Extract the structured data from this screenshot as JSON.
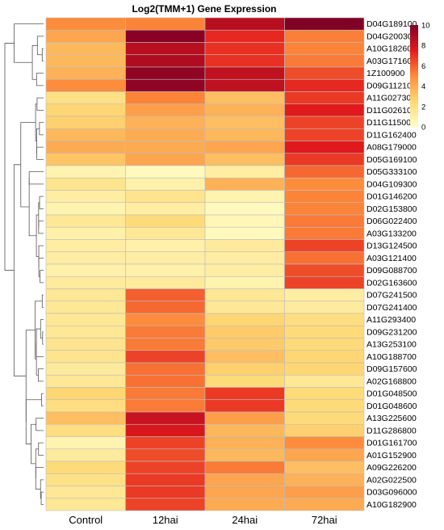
{
  "chart_data": {
    "type": "heatmap",
    "title": "Log2(TMM+1) Gene Expression",
    "columns": [
      "Control",
      "12hai",
      "24hai",
      "72hai"
    ],
    "rows": [
      {
        "gene": "D04G189100",
        "values": [
          5.0,
          5.2,
          8.6,
          10.0
        ]
      },
      {
        "gene": "D04G200300",
        "values": [
          4.2,
          9.8,
          7.2,
          5.3
        ]
      },
      {
        "gene": "A10G182600",
        "values": [
          3.6,
          8.6,
          7.0,
          5.2
        ]
      },
      {
        "gene": "A03G171600",
        "values": [
          3.6,
          8.8,
          7.0,
          5.4
        ]
      },
      {
        "gene": "1Z100900",
        "values": [
          3.8,
          9.6,
          8.4,
          6.4
        ]
      },
      {
        "gene": "D09G112100",
        "values": [
          5.0,
          9.6,
          8.4,
          7.2
        ]
      },
      {
        "gene": "A11G027300",
        "values": [
          2.0,
          5.2,
          3.4,
          6.8
        ]
      },
      {
        "gene": "D11G026100",
        "values": [
          2.6,
          4.4,
          3.8,
          7.6
        ]
      },
      {
        "gene": "D11G115000",
        "values": [
          2.8,
          3.8,
          3.4,
          6.6
        ]
      },
      {
        "gene": "D11G162400",
        "values": [
          3.6,
          4.0,
          3.6,
          6.6
        ]
      },
      {
        "gene": "A08G179000",
        "values": [
          4.0,
          4.0,
          4.2,
          7.6
        ]
      },
      {
        "gene": "D05G169100",
        "values": [
          3.2,
          4.2,
          3.4,
          6.8
        ]
      },
      {
        "gene": "D05G333100",
        "values": [
          0.8,
          0.4,
          1.2,
          5.8
        ]
      },
      {
        "gene": "D04G109300",
        "values": [
          1.8,
          1.0,
          3.8,
          5.0
        ]
      },
      {
        "gene": "D01G146200",
        "values": [
          1.2,
          1.8,
          0.8,
          5.2
        ]
      },
      {
        "gene": "D02G153800",
        "values": [
          0.8,
          1.2,
          0.4,
          5.2
        ]
      },
      {
        "gene": "D06G022400",
        "values": [
          1.6,
          2.4,
          0.6,
          5.4
        ]
      },
      {
        "gene": "A03G133200",
        "values": [
          1.0,
          1.6,
          0.4,
          5.4
        ]
      },
      {
        "gene": "D13G124500",
        "values": [
          1.2,
          1.0,
          1.4,
          6.6
        ]
      },
      {
        "gene": "A03G121400",
        "values": [
          1.2,
          1.2,
          1.2,
          5.6
        ]
      },
      {
        "gene": "D09G088700",
        "values": [
          1.0,
          1.0,
          1.2,
          6.4
        ]
      },
      {
        "gene": "D02G163600",
        "values": [
          1.4,
          1.4,
          0.8,
          6.6
        ]
      },
      {
        "gene": "D07G241500",
        "values": [
          1.6,
          6.0,
          1.6,
          1.2
        ]
      },
      {
        "gene": "D07G241400",
        "values": [
          1.6,
          5.8,
          1.6,
          1.4
        ]
      },
      {
        "gene": "A11G293400",
        "values": [
          1.6,
          5.0,
          2.6,
          2.2
        ]
      },
      {
        "gene": "D09G231200",
        "values": [
          1.6,
          5.4,
          3.0,
          2.4
        ]
      },
      {
        "gene": "A13G253100",
        "values": [
          1.8,
          5.4,
          3.0,
          2.4
        ]
      },
      {
        "gene": "A10G188700",
        "values": [
          1.8,
          6.6,
          3.4,
          2.6
        ]
      },
      {
        "gene": "D09G157600",
        "values": [
          1.4,
          5.6,
          2.8,
          2.6
        ]
      },
      {
        "gene": "A02G168800",
        "values": [
          1.6,
          5.6,
          2.4,
          1.6
        ]
      },
      {
        "gene": "D01G048500",
        "values": [
          2.6,
          5.4,
          6.8,
          2.4
        ]
      },
      {
        "gene": "D01G048600",
        "values": [
          2.2,
          5.4,
          6.8,
          2.4
        ]
      },
      {
        "gene": "A13G225600",
        "values": [
          3.4,
          8.2,
          4.4,
          2.4
        ]
      },
      {
        "gene": "D11G286800",
        "values": [
          2.2,
          7.8,
          3.6,
          2.8
        ]
      },
      {
        "gene": "D01G161700",
        "values": [
          0.8,
          6.6,
          3.8,
          5.0
        ]
      },
      {
        "gene": "A01G152900",
        "values": [
          1.4,
          6.4,
          3.6,
          4.2
        ]
      },
      {
        "gene": "A09G226200",
        "values": [
          2.4,
          6.6,
          5.4,
          3.4
        ]
      },
      {
        "gene": "A02G022500",
        "values": [
          2.0,
          6.8,
          4.2,
          3.8
        ]
      },
      {
        "gene": "D03G096000",
        "values": [
          1.6,
          6.8,
          4.2,
          4.4
        ]
      },
      {
        "gene": "A10G182900",
        "values": [
          1.6,
          6.6,
          4.0,
          4.0
        ]
      }
    ],
    "color_scale": {
      "min": 0,
      "max": 10,
      "stops": [
        "#ffffcc",
        "#fed976",
        "#fd8d3c",
        "#e31a1c",
        "#800026"
      ]
    },
    "legend_ticks": [
      0,
      2,
      4,
      6,
      8,
      10
    ],
    "legend_placement": "top-right",
    "row_dendrogram": true
  }
}
